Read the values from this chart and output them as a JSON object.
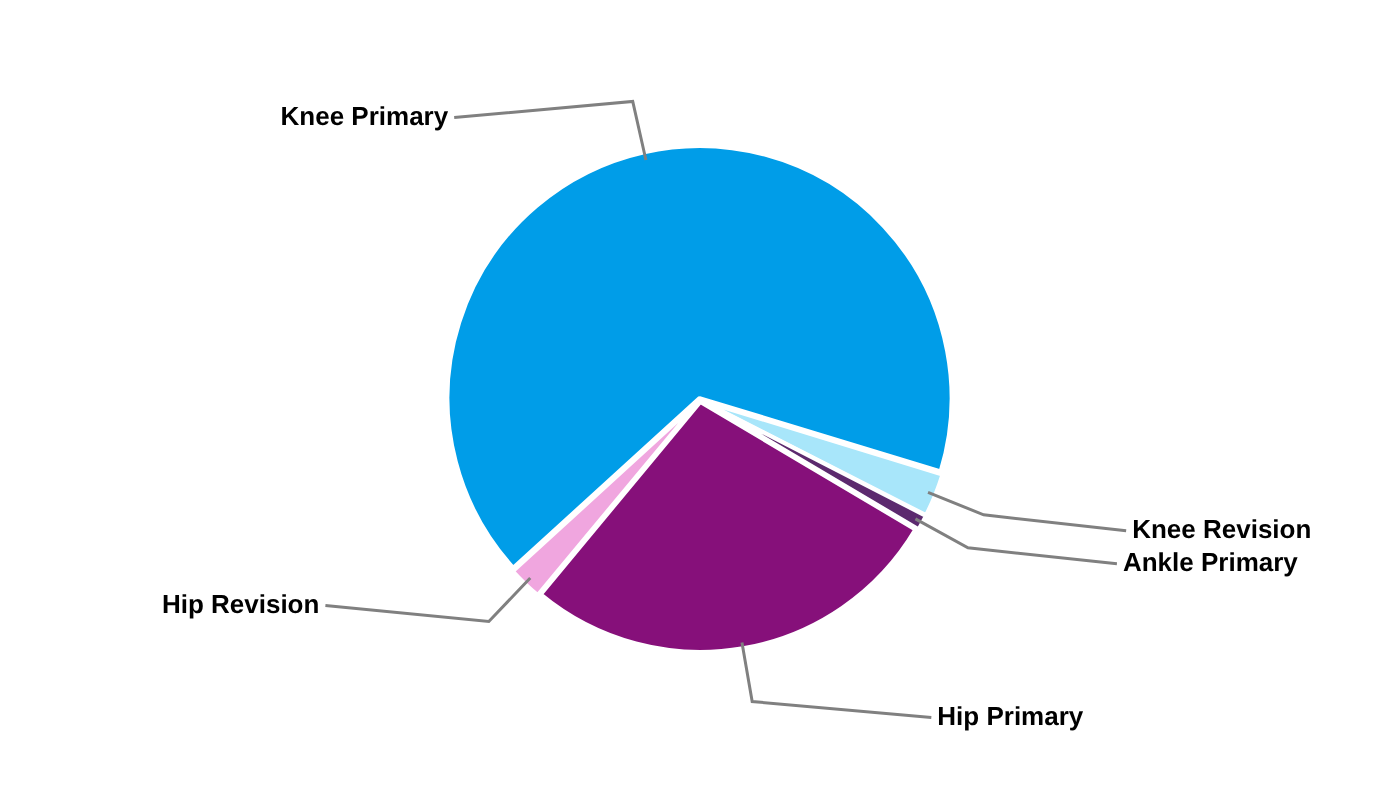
{
  "chart_data": {
    "type": "pie",
    "categories": [
      "Knee Primary",
      "Knee Revision",
      "Ankle Primary",
      "Hip Primary",
      "Hip Revision"
    ],
    "values": [
      66.5,
      2.8,
      1.0,
      27.5,
      2.2
    ],
    "colors": [
      "#009de8",
      "#a8e6fa",
      "#5c2a6e",
      "#86107a",
      "#f0a6df"
    ],
    "legend": false
  }
}
